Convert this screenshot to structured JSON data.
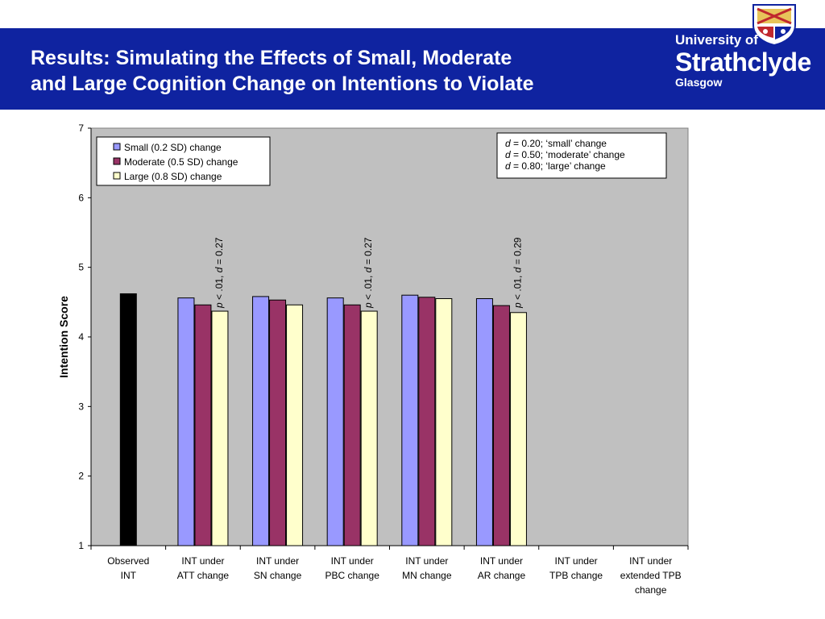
{
  "slide": {
    "title_line1": "Results: Simulating the Effects of Small, Moderate",
    "title_line2": "and Large Cognition Change on Intentions to Violate",
    "logo": {
      "line1": "University of",
      "line2": "Strathclyde",
      "line3": "Glasgow"
    },
    "colors": {
      "banner": "#0f23a0",
      "text": "#ffffff"
    }
  },
  "chart_data": {
    "type": "bar",
    "ylabel": "Intention Score",
    "ylim": [
      1,
      7
    ],
    "yticks": [
      1,
      2,
      3,
      4,
      5,
      6,
      7
    ],
    "grid": false,
    "plot_background": "#c0c0c0",
    "categories": [
      [
        "Observed",
        "INT"
      ],
      [
        "INT under",
        "ATT change"
      ],
      [
        "INT under",
        "SN change"
      ],
      [
        "INT under",
        "PBC change"
      ],
      [
        "INT under",
        "MN change"
      ],
      [
        "INT under",
        "AR change"
      ],
      [
        "INT under",
        "TPB change"
      ],
      [
        "INT under",
        "extended TPB",
        "change"
      ]
    ],
    "observed": {
      "category_index": 0,
      "value": 4.62,
      "color": "#000000"
    },
    "series": [
      {
        "name": "Small (0.2 SD) change",
        "color": "#9999ff",
        "values": [
          null,
          4.56,
          4.58,
          4.56,
          4.6,
          4.55,
          null,
          null
        ]
      },
      {
        "name": "Moderate (0.5 SD) change",
        "color": "#993366",
        "values": [
          null,
          4.46,
          4.53,
          4.46,
          4.57,
          4.45,
          null,
          null
        ]
      },
      {
        "name": "Large (0.8 SD) change",
        "color": "#ffffcc",
        "values": [
          null,
          4.37,
          4.46,
          4.37,
          4.55,
          4.35,
          null,
          null
        ]
      }
    ],
    "legend": {
      "position": "top-left"
    },
    "info_box": {
      "position": "top-right",
      "lines": [
        {
          "d": "d",
          "rest": " = 0.20; ‘small’ change"
        },
        {
          "d": "d",
          "rest": " = 0.50; ‘moderate’ change"
        },
        {
          "d": "d",
          "rest": " = 0.80; ‘large’ change"
        }
      ]
    },
    "annotations": [
      {
        "category_index": 1,
        "p": "p",
        "mid": " < .01, ",
        "d": "d",
        "value": " = 0.27"
      },
      {
        "category_index": 3,
        "p": "p",
        "mid": " < .01, ",
        "d": "d",
        "value": " = 0.27"
      },
      {
        "category_index": 5,
        "p": "p",
        "mid": " < .01, ",
        "d": "d",
        "value": " = 0.29"
      }
    ]
  }
}
